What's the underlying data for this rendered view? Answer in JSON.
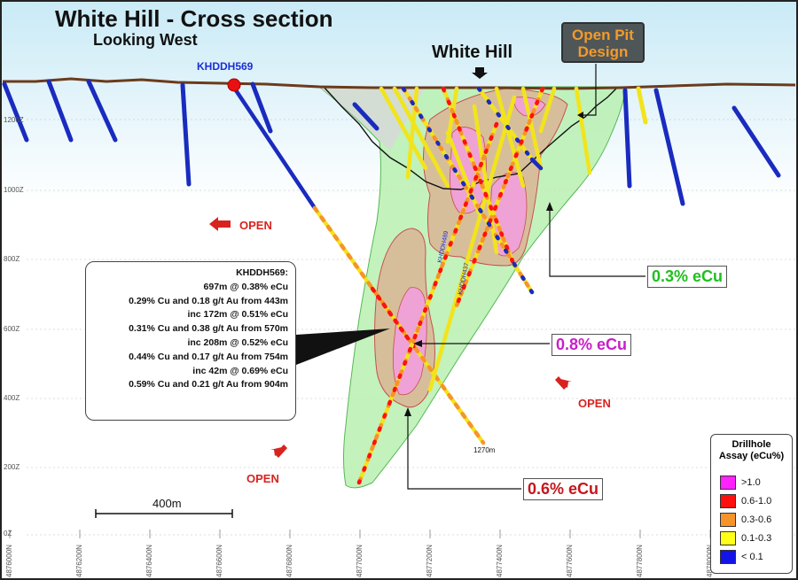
{
  "title": "White Hill  - Cross section",
  "subtitle": "Looking West",
  "hill_label": "White Hill",
  "pit_design": {
    "line1": "Open Pit",
    "line2": "Design",
    "fill": "#4f5658",
    "text_color": "#f39a2b"
  },
  "drillhole_label": "KHDDH569",
  "open_labels": [
    "OPEN",
    "OPEN",
    "OPEN"
  ],
  "elevation_labels": [
    "1200Z",
    "1000Z",
    "800Z",
    "600Z",
    "400Z",
    "200Z",
    "0Z"
  ],
  "easting_labels": [
    "4876000N",
    "4876200N",
    "4876400N",
    "4876600N",
    "4876800N",
    "4877000N",
    "4877200N",
    "4877400N",
    "4877600N",
    "4877800N",
    "4878000N"
  ],
  "callout": {
    "lines": [
      "KHDDH569:",
      "697m @ 0.38% eCu",
      "0.29% Cu and 0.18 g/t Au from 443m",
      "inc 172m @ 0.51% eCu",
      "0.31% Cu and 0.38 g/t Au from 570m",
      "inc 208m @ 0.52% eCu",
      "0.44% Cu and 0.17 g/t Au from 754m",
      "inc 42m @ 0.69% eCu",
      "0.59% Cu and 0.21 g/t Au from 904m"
    ]
  },
  "grade_shells": [
    {
      "label": "0.3% eCu",
      "color": "#1fbf1f"
    },
    {
      "label": "0.8% eCu",
      "color": "#c81fc8"
    },
    {
      "label": "0.6% eCu",
      "color": "#c4161c"
    }
  ],
  "scale_bar": "400m",
  "hole_end": "1270m",
  "hole_names": [
    "KHDDH489",
    "KHDDH437"
  ],
  "legend": {
    "title_line1": "Drillhole",
    "title_line2": "Assay (eCu%)",
    "items": [
      {
        "label": ">1.0",
        "color": "#ff22ff"
      },
      {
        "label": "0.6-1.0",
        "color": "#ff1010"
      },
      {
        "label": "0.3-0.6",
        "color": "#f7932b"
      },
      {
        "label": "0.1-0.3",
        "color": "#ffff1a"
      },
      {
        "label": "< 0.1",
        "color": "#1414e6"
      }
    ]
  },
  "colors": {
    "shell_low": "#b8f0b0",
    "shell_mid": "#d9b896",
    "shell_high": "#f0a0d8",
    "drill_low": "#1a2bbf",
    "drill_mid": "#f2e41c",
    "open_arrow": "#d8231e"
  }
}
